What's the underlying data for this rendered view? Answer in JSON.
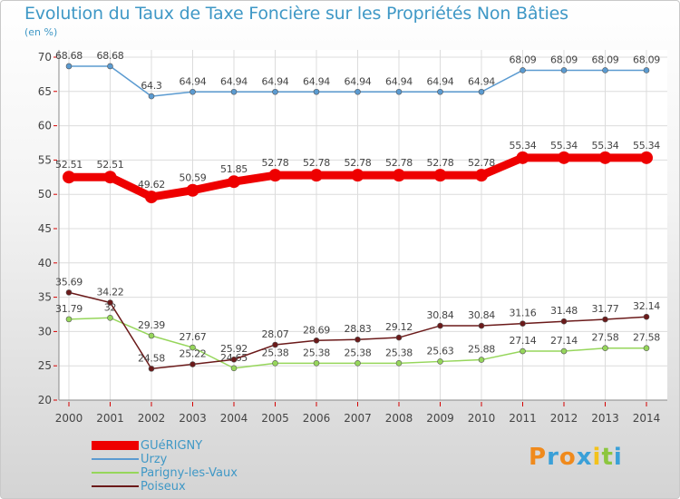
{
  "chart_data": {
    "type": "line",
    "title": "Evolution du Taux de Taxe Foncière sur les Propriétés Non Bâties",
    "ylabel": "(en %)",
    "xlabel": "",
    "ylim": [
      20,
      70
    ],
    "yticks": [
      20,
      25,
      30,
      35,
      40,
      45,
      50,
      55,
      60,
      65,
      70
    ],
    "grid": true,
    "categories": [
      "2000",
      "2001",
      "2002",
      "2003",
      "2004",
      "2005",
      "2006",
      "2007",
      "2008",
      "2009",
      "2010",
      "2011",
      "2012",
      "2013",
      "2014"
    ],
    "series": [
      {
        "name": "GUéRIGNY",
        "color": "#ee0000",
        "values": [
          52.51,
          52.51,
          49.62,
          50.59,
          51.85,
          52.78,
          52.78,
          52.78,
          52.78,
          52.78,
          52.78,
          55.34,
          55.34,
          55.34,
          55.34
        ],
        "labels": [
          "52.51",
          "52.51",
          "49.62",
          "50.59",
          "51.85",
          "52.78",
          "52.78",
          "52.78",
          "52.78",
          "52.78",
          "52.78",
          "55.34",
          "55.34",
          "55.34",
          "55.34"
        ]
      },
      {
        "name": "Urzy",
        "color": "#5b9bd1",
        "values": [
          68.68,
          68.68,
          64.3,
          64.94,
          64.94,
          64.94,
          64.94,
          64.94,
          64.94,
          64.94,
          64.94,
          68.09,
          68.09,
          68.09,
          68.09
        ],
        "labels": [
          "68.68",
          "68.68",
          "64.3",
          "64.94",
          "64.94",
          "64.94",
          "64.94",
          "64.94",
          "64.94",
          "64.94",
          "64.94",
          "68.09",
          "68.09",
          "68.09",
          "68.09"
        ]
      },
      {
        "name": "Parigny-les-Vaux",
        "color": "#96d65b",
        "values": [
          31.79,
          32,
          29.39,
          27.67,
          24.65,
          25.38,
          25.38,
          25.38,
          25.38,
          25.63,
          25.88,
          27.14,
          27.14,
          27.58,
          27.58
        ],
        "labels": [
          "31.79",
          "32",
          "29.39",
          "27.67",
          "24.65",
          "25.38",
          "25.38",
          "25.38",
          "25.38",
          "25.63",
          "25.88",
          "27.14",
          "27.14",
          "27.58",
          "27.58"
        ]
      },
      {
        "name": "Poiseux",
        "color": "#6b1a1a",
        "values": [
          35.69,
          34.22,
          24.58,
          25.22,
          25.92,
          28.07,
          28.69,
          28.83,
          29.12,
          30.84,
          30.84,
          31.16,
          31.48,
          31.77,
          32.14
        ],
        "labels": [
          "35.69",
          "34.22",
          "24.58",
          "25.22",
          "25.92",
          "28.07",
          "28.69",
          "28.83",
          "29.12",
          "30.84",
          "30.84",
          "31.16",
          "31.48",
          "31.77",
          "32.14"
        ]
      }
    ]
  },
  "logo": {
    "letters": [
      "P",
      "r",
      "o",
      "x",
      "i",
      "t",
      "i"
    ],
    "colors": [
      "#f08a1c",
      "#3aa0d8",
      "#f08a1c",
      "#3aa0d8",
      "#f3c21b",
      "#8cc63f",
      "#3aa0d8"
    ]
  }
}
